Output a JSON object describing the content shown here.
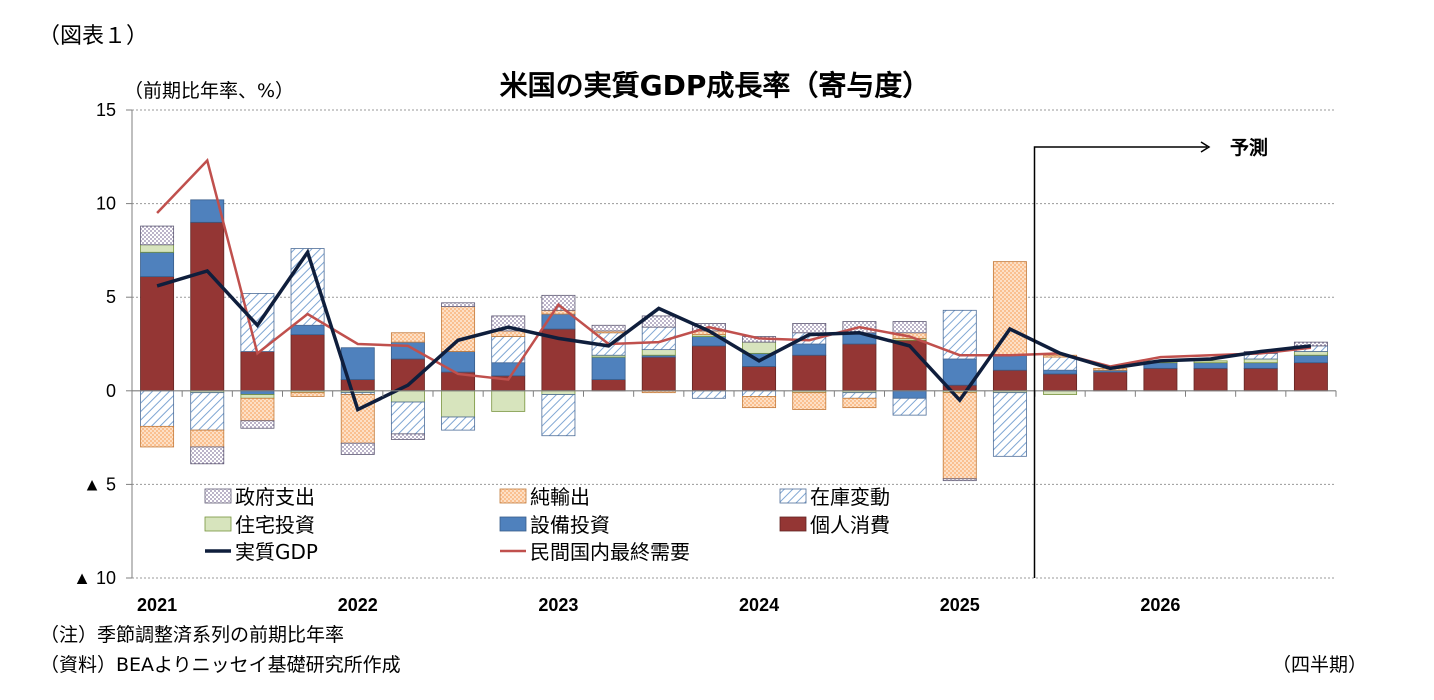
{
  "figure_label": "（図表１）",
  "footnotes": {
    "note": "（注）季節調整済系列の前期比年率",
    "source": "（資料）BEAよりニッセイ基礎研究所作成",
    "x_unit": "（四半期）"
  },
  "chart_data": {
    "type": "bar",
    "stacked": true,
    "title": "米国の実質GDP成長率（寄与度）",
    "ylabel": "（前期比年率、%）",
    "xlabel": "（四半期）",
    "ylim": [
      -10,
      15
    ],
    "yticks": [
      15,
      10,
      5,
      0,
      -5,
      -10
    ],
    "ytick_labels": [
      "15",
      "10",
      "5",
      "0",
      "▲ 5",
      "▲ 10"
    ],
    "grid": true,
    "legend_position": "bottom-inside",
    "year_labels": [
      "2021",
      "2022",
      "2023",
      "2024",
      "2025",
      "2026"
    ],
    "categories": [
      "2021Q1",
      "2021Q2",
      "2021Q3",
      "2021Q4",
      "2022Q1",
      "2022Q2",
      "2022Q3",
      "2022Q4",
      "2023Q1",
      "2023Q2",
      "2023Q3",
      "2023Q4",
      "2024Q1",
      "2024Q2",
      "2024Q3",
      "2024Q4",
      "2025Q1",
      "2025Q2",
      "2025Q3",
      "2025Q4",
      "2026Q1",
      "2026Q2",
      "2026Q3",
      "2026Q4"
    ],
    "forecast": {
      "label": "予測",
      "start_category": "2025Q3"
    },
    "series": [
      {
        "name": "個人消費",
        "kind": "bar",
        "color": "#943634",
        "pattern": "solid",
        "values": [
          6.1,
          9.0,
          2.1,
          3.0,
          0.6,
          1.7,
          1.0,
          0.8,
          3.3,
          0.6,
          1.8,
          2.4,
          1.3,
          1.9,
          2.5,
          2.7,
          0.3,
          1.1,
          0.9,
          1.0,
          1.2,
          1.2,
          1.2,
          1.5
        ]
      },
      {
        "name": "設備投資",
        "kind": "bar",
        "color": "#4f81bd",
        "pattern": "solid",
        "values": [
          1.3,
          1.2,
          -0.2,
          0.5,
          1.7,
          0.9,
          1.1,
          0.7,
          0.8,
          1.2,
          0.1,
          0.5,
          0.7,
          0.6,
          0.6,
          -0.4,
          1.4,
          0.8,
          0.2,
          0.1,
          0.3,
          0.3,
          0.3,
          0.4
        ]
      },
      {
        "name": "住宅投資",
        "kind": "bar",
        "color": "#d7e4bd",
        "pattern": "solid",
        "values": [
          0.4,
          -0.1,
          -0.2,
          -0.1,
          -0.1,
          -0.6,
          -1.4,
          -1.1,
          -0.2,
          0.1,
          0.3,
          0.1,
          0.6,
          -0.1,
          -0.1,
          0.1,
          -0.1,
          -0.1,
          -0.2,
          0.0,
          0.1,
          0.1,
          0.2,
          0.2
        ]
      },
      {
        "name": "在庫変動",
        "kind": "bar",
        "color": "#c6d9f1",
        "pattern": "hatch",
        "values": [
          -1.9,
          -2.0,
          3.1,
          4.1,
          -0.1,
          -1.7,
          -0.7,
          1.4,
          -2.2,
          1.2,
          1.2,
          -0.4,
          -0.3,
          0.6,
          -0.3,
          -0.9,
          2.6,
          -3.4,
          0.7,
          0.0,
          0.0,
          0.0,
          0.3,
          0.3
        ]
      },
      {
        "name": "純輸出",
        "kind": "bar",
        "color": "#fac090",
        "pattern": "checker",
        "values": [
          -1.1,
          -0.9,
          -1.2,
          -0.2,
          -2.6,
          0.5,
          2.4,
          0.3,
          0.2,
          0.1,
          -0.1,
          0.2,
          -0.6,
          -0.9,
          -0.5,
          0.3,
          -4.6,
          5.0,
          0.1,
          0.1,
          0.0,
          0.0,
          0.0,
          0.0
        ]
      },
      {
        "name": "政府支出",
        "kind": "bar",
        "color": "#e6e0ec",
        "pattern": "dots",
        "values": [
          1.0,
          -0.9,
          -0.4,
          0.0,
          -0.6,
          -0.3,
          0.2,
          0.8,
          0.8,
          0.3,
          0.6,
          0.4,
          0.3,
          0.5,
          0.6,
          0.6,
          -0.1,
          0.0,
          0.0,
          0.0,
          0.0,
          0.0,
          0.1,
          0.2
        ]
      },
      {
        "name": "実質GDP",
        "kind": "line",
        "color": "#0f1e3c",
        "values": [
          5.6,
          6.4,
          3.5,
          7.4,
          -1.0,
          0.3,
          2.7,
          3.4,
          2.8,
          2.4,
          4.4,
          3.2,
          1.6,
          3.0,
          3.1,
          2.4,
          -0.5,
          3.3,
          2.0,
          1.2,
          1.6,
          1.7,
          2.1,
          2.4
        ]
      },
      {
        "name": "民間国内最終需要",
        "kind": "line",
        "color": "#c0504d",
        "values": [
          9.5,
          12.3,
          2.0,
          4.1,
          2.5,
          2.4,
          0.9,
          0.6,
          4.6,
          2.5,
          2.6,
          3.4,
          2.8,
          2.7,
          3.4,
          2.9,
          1.9,
          1.9,
          2.0,
          1.3,
          1.8,
          1.9,
          2.0,
          2.3
        ]
      }
    ],
    "legend": [
      "政府支出",
      "純輸出",
      "在庫変動",
      "住宅投資",
      "設備投資",
      "個人消費",
      "実質GDP",
      "民間国内最終需要"
    ]
  }
}
